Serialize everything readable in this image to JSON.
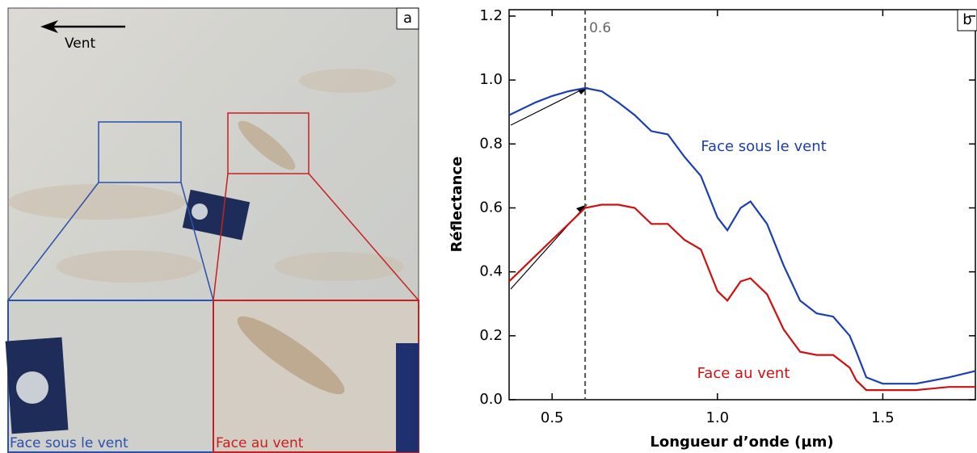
{
  "photo": {
    "label": "a",
    "wind": "Vent",
    "inset_left": "Face sous le vent",
    "inset_right": "Face au vent"
  },
  "chart_data": {
    "type": "line",
    "panel_label": "b",
    "x_label": "Longueur d’onde (µm)",
    "y_label": "Réflectance",
    "x": [
      0.37,
      0.45,
      0.5,
      0.55,
      0.6,
      0.65,
      0.7,
      0.75,
      0.8,
      0.85,
      0.9,
      0.95,
      1.0,
      1.03,
      1.07,
      1.1,
      1.15,
      1.2,
      1.25,
      1.3,
      1.35,
      1.4,
      1.42,
      1.45,
      1.5,
      1.6,
      1.7,
      1.78
    ],
    "series": [
      {
        "name": "Face sous le vent",
        "color": "#1a3fb0",
        "values": [
          0.89,
          0.93,
          0.95,
          0.965,
          0.975,
          0.965,
          0.93,
          0.89,
          0.84,
          0.83,
          0.76,
          0.7,
          0.57,
          0.53,
          0.6,
          0.62,
          0.55,
          0.42,
          0.31,
          0.27,
          0.26,
          0.2,
          0.15,
          0.07,
          0.05,
          0.05,
          0.07,
          0.09
        ]
      },
      {
        "name": "Face au vent",
        "color": "#d01010",
        "values": [
          0.37,
          0.45,
          0.5,
          0.55,
          0.6,
          0.61,
          0.61,
          0.6,
          0.55,
          0.55,
          0.5,
          0.47,
          0.34,
          0.31,
          0.37,
          0.38,
          0.33,
          0.22,
          0.15,
          0.14,
          0.14,
          0.1,
          0.06,
          0.03,
          0.03,
          0.03,
          0.04,
          0.04
        ]
      }
    ],
    "vline": 0.6,
    "xlim": [
      0.37,
      1.78
    ],
    "ylim": [
      0,
      1.22
    ],
    "xticks": [
      0.5,
      {
        "value": 1,
        "label": "1.0"
      },
      1.5
    ],
    "yticks": [
      {
        "value": 0,
        "label": "0.0"
      },
      0.2,
      0.4,
      0.6,
      0.8,
      {
        "value": 1,
        "label": "1.0"
      },
      1.2
    ]
  }
}
